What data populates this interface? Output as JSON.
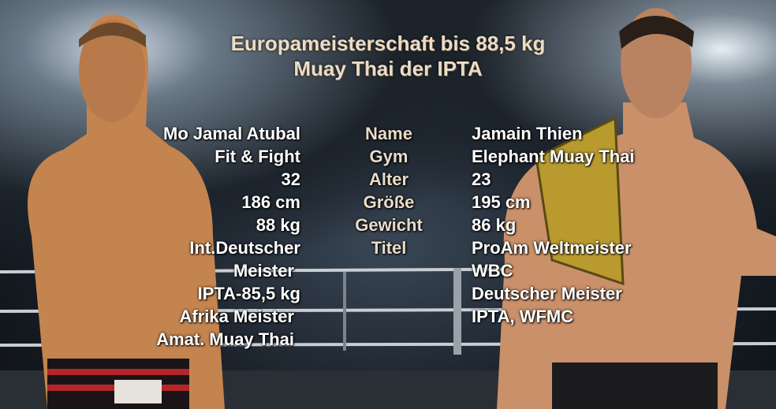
{
  "title": {
    "line1": "Europameisterschaft bis 88,5 kg",
    "line2": "Muay Thai der IPTA"
  },
  "labels": [
    "Name",
    "Gym",
    "Alter",
    "Größe",
    "Gewicht",
    "Titel"
  ],
  "fighter_left": {
    "lines": [
      "Mo Jamal Atubal",
      "Fit & Fight",
      "32",
      "186 cm",
      "88 kg",
      "Int.Deutscher",
      "Meister",
      "IPTA-85,5 kg",
      "Afrika Meister",
      "Amat. Muay Thai"
    ]
  },
  "fighter_right": {
    "lines": [
      "Jamain Thien",
      "Elephant Muay Thai",
      "23",
      "195 cm",
      "86 kg",
      "ProAm Weltmeister",
      "WBC",
      "Deutscher Meister",
      "IPTA, WFMC"
    ]
  },
  "colors": {
    "title": "#eadcc6",
    "text": "#ffffff",
    "skin": "#c98a55",
    "belt": "#b89a2e"
  }
}
